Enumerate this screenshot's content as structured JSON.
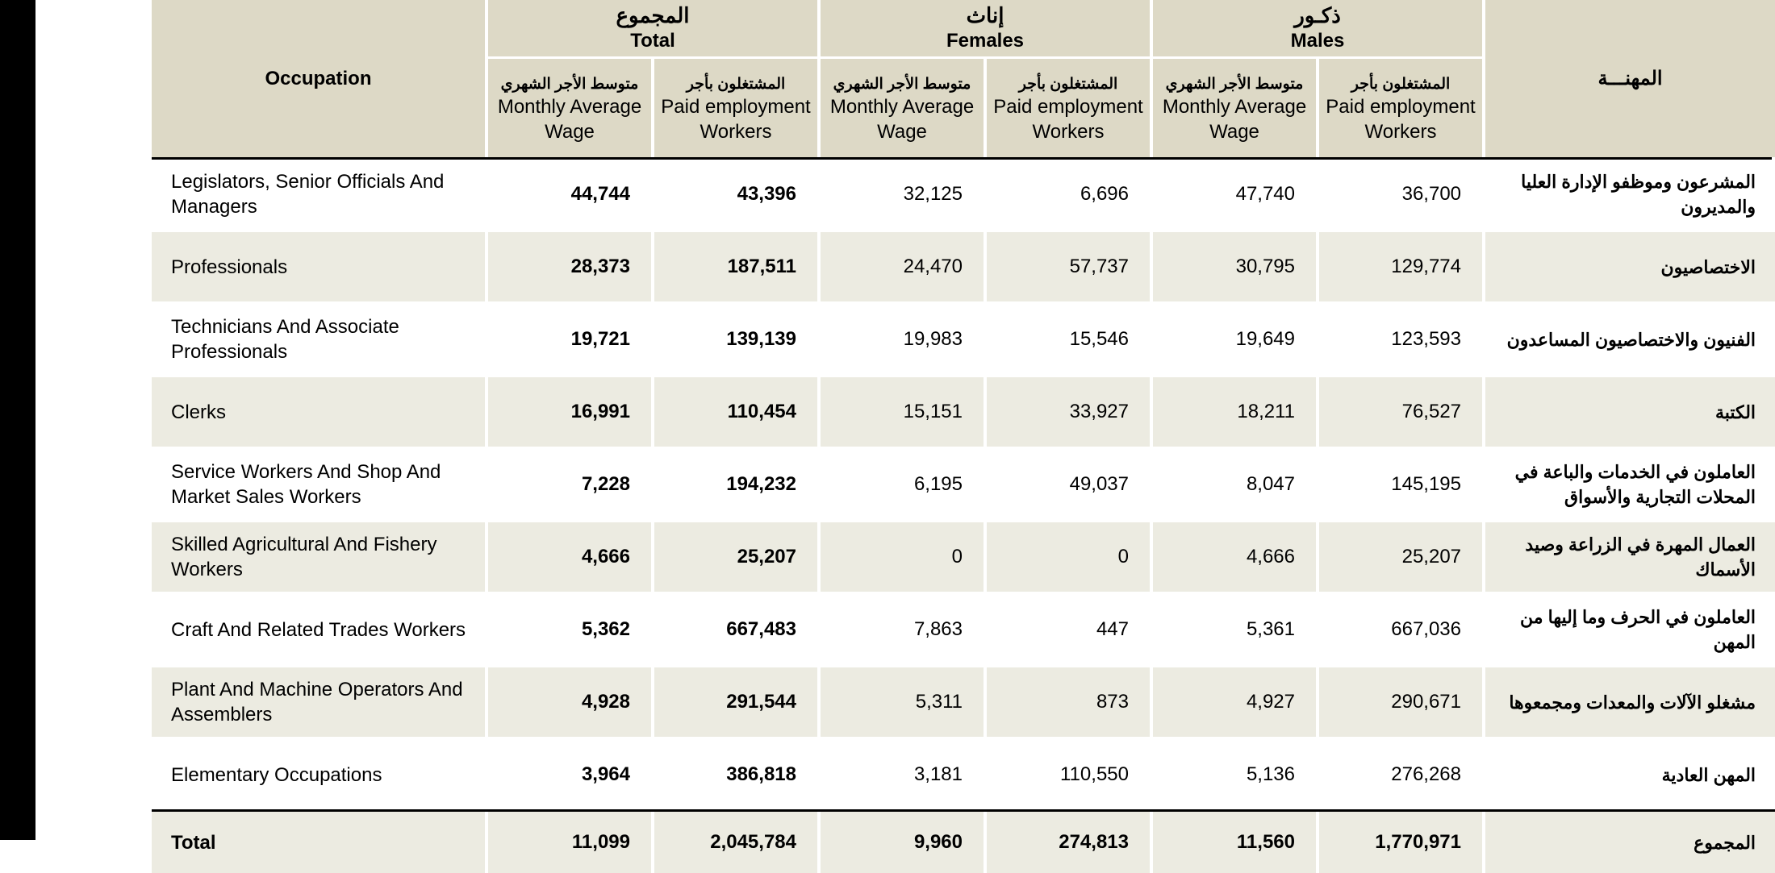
{
  "header": {
    "occupation_en": "Occupation",
    "occupation_ar": "المهنـــة",
    "groups": [
      {
        "ar": "المجموع",
        "en": "Total"
      },
      {
        "ar": "إناث",
        "en": "Females"
      },
      {
        "ar": "ذكـور",
        "en": "Males"
      }
    ],
    "sub_wage_ar": "متوسط الأجر الشهري",
    "sub_wage_en_total": "Monthly Average Wage",
    "sub_wage_en": "Monthly Average Wage",
    "sub_paid_ar": "المشتغلون بأجر",
    "sub_paid_en": "Paid employment Workers"
  },
  "rows": [
    {
      "en": "Legislators, Senior Officials And Managers",
      "ar": "المشرعون وموظفو الإدارة العليا والمديرون",
      "total_wage": "44,744",
      "total_paid": "43,396",
      "f_wage": "32,125",
      "f_paid": "6,696",
      "m_wage": "47,740",
      "m_paid": "36,700"
    },
    {
      "en": "Professionals",
      "ar": "الاختصاصيون",
      "total_wage": "28,373",
      "total_paid": "187,511",
      "f_wage": "24,470",
      "f_paid": "57,737",
      "m_wage": "30,795",
      "m_paid": "129,774"
    },
    {
      "en": "Technicians And Associate Professionals",
      "ar": "الفنيون والاختصاصيون المساعدون",
      "total_wage": "19,721",
      "total_paid": "139,139",
      "f_wage": "19,983",
      "f_paid": "15,546",
      "m_wage": "19,649",
      "m_paid": "123,593"
    },
    {
      "en": "Clerks",
      "ar": "الكتبة",
      "total_wage": "16,991",
      "total_paid": "110,454",
      "f_wage": "15,151",
      "f_paid": "33,927",
      "m_wage": "18,211",
      "m_paid": "76,527"
    },
    {
      "en": "Service Workers And Shop And Market Sales Workers",
      "ar": "العاملون في الخدمات والباعة في المحلات التجارية والأسواق",
      "total_wage": "7,228",
      "total_paid": "194,232",
      "f_wage": "6,195",
      "f_paid": "49,037",
      "m_wage": "8,047",
      "m_paid": "145,195"
    },
    {
      "en": "Skilled Agricultural And Fishery Workers",
      "ar": "العمال المهرة في الزراعة وصيد الأسماك",
      "total_wage": "4,666",
      "total_paid": "25,207",
      "f_wage": "0",
      "f_paid": "0",
      "m_wage": "4,666",
      "m_paid": "25,207"
    },
    {
      "en": "Craft And Related Trades Workers",
      "ar": "العاملون في الحرف وما إليها من المهن",
      "total_wage": "5,362",
      "total_paid": "667,483",
      "f_wage": "7,863",
      "f_paid": "447",
      "m_wage": "5,361",
      "m_paid": "667,036"
    },
    {
      "en": "Plant And Machine Operators And Assemblers",
      "ar": "مشغلو الآلات والمعدات ومجمعوها",
      "total_wage": "4,928",
      "total_paid": "291,544",
      "f_wage": "5,311",
      "f_paid": "873",
      "m_wage": "4,927",
      "m_paid": "290,671"
    },
    {
      "en": "Elementary Occupations",
      "ar": "المهن العادية",
      "total_wage": "3,964",
      "total_paid": "386,818",
      "f_wage": "3,181",
      "f_paid": "110,550",
      "m_wage": "5,136",
      "m_paid": "276,268"
    }
  ],
  "total": {
    "en": "Total",
    "ar": "المجموع",
    "total_wage": "11,099",
    "total_paid": "2,045,784",
    "f_wage": "9,960",
    "f_paid": "274,813",
    "m_wage": "11,560",
    "m_paid": "1,770,971"
  }
}
